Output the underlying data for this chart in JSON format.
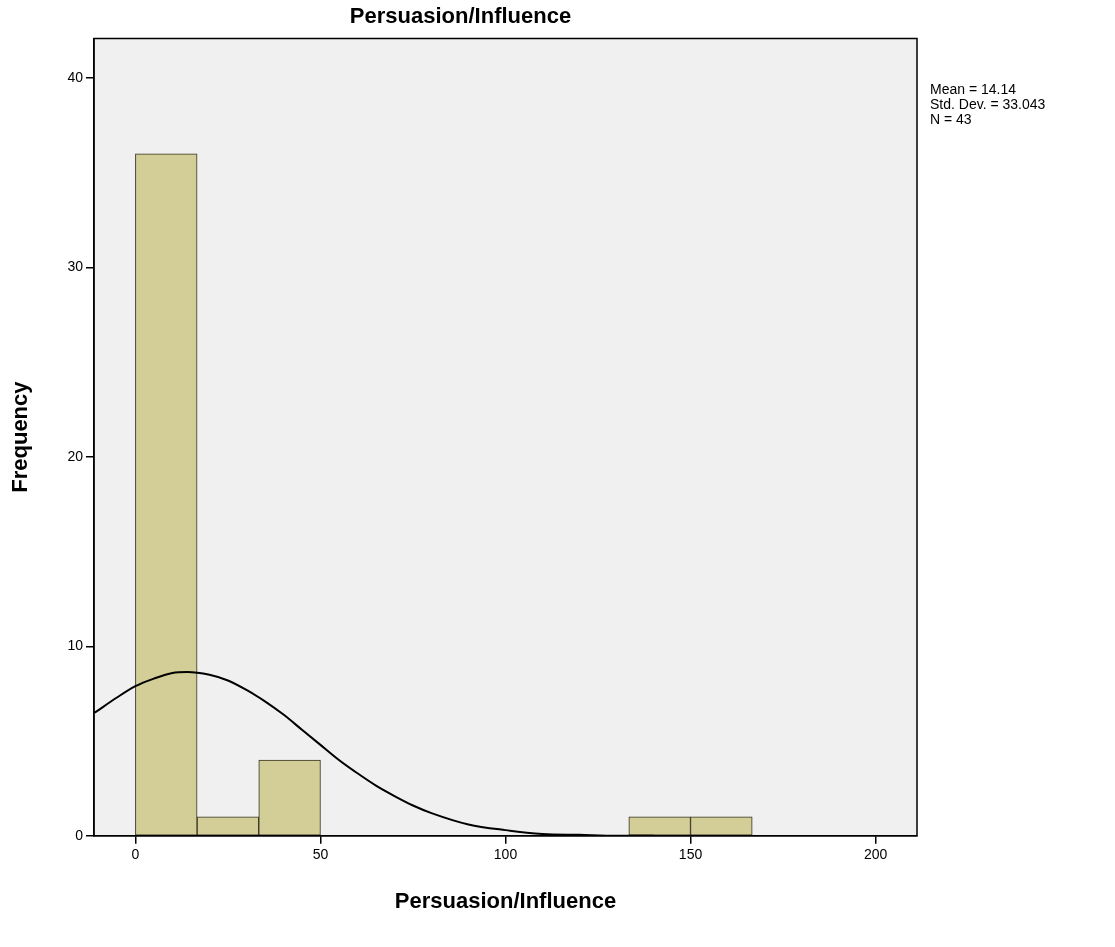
{
  "chart_data": {
    "type": "histogram",
    "title": "Persuasion/Influence",
    "xlabel": "Persuasion/Influence",
    "ylabel": "Frequency",
    "bins": [
      0,
      16.67,
      33.33,
      50,
      66.67,
      83.33,
      100,
      116.67,
      133.33,
      150,
      166.67
    ],
    "values": [
      36,
      1,
      4,
      0,
      0,
      0,
      0,
      0,
      1,
      1
    ],
    "color": "#d3ce97",
    "series": [
      {
        "type": "line",
        "color": "#000000",
        "x": [
          -11,
          -5,
          0,
          5,
          10,
          14,
          20,
          25,
          30,
          35,
          40,
          45,
          50,
          55,
          60,
          65,
          70,
          75,
          80,
          90,
          100,
          110,
          120,
          130,
          140
        ],
        "values": [
          6.5,
          7.3,
          7.9,
          8.3,
          8.6,
          8.65,
          8.5,
          8.2,
          7.7,
          7.1,
          6.4,
          5.6,
          4.8,
          4.0,
          3.3,
          2.65,
          2.1,
          1.6,
          1.2,
          0.6,
          0.3,
          0.1,
          0.05,
          0,
          0
        ]
      }
    ],
    "marker": "none",
    "xlim": [
      -11.2,
      211.2
    ],
    "xticks": [
      0,
      50,
      100,
      150,
      200
    ],
    "ylim": [
      0,
      42.1
    ],
    "yticks": [
      0,
      10,
      20,
      30,
      40
    ],
    "grid": false,
    "legend": false,
    "annotations": [
      "Mean = 14.14",
      "Std. Dev. = 33.043",
      "N = 43"
    ]
  }
}
